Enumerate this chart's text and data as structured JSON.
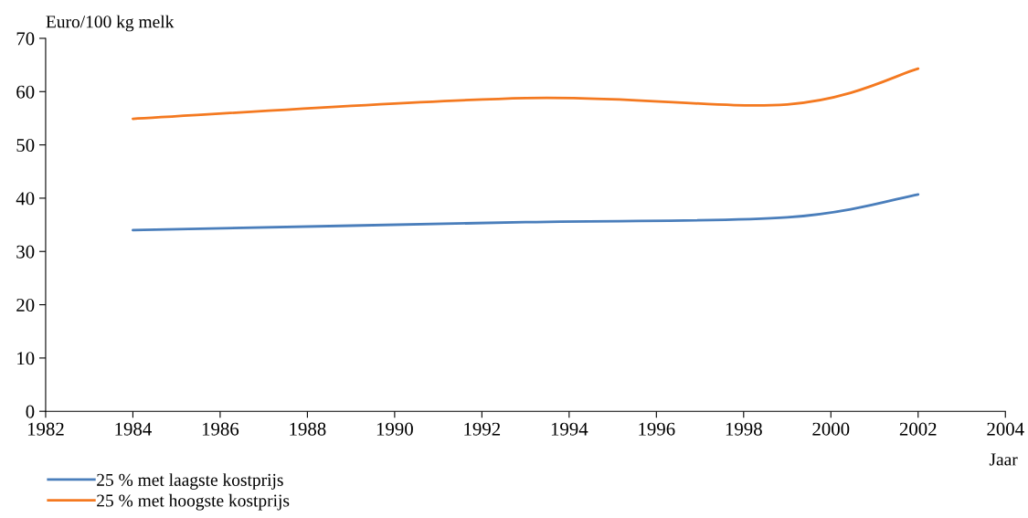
{
  "chart_data": {
    "type": "line",
    "ylabel": "Euro/100 kg melk",
    "xlabel": "Jaar",
    "x": [
      1984,
      1993,
      1999,
      2002
    ],
    "series": [
      {
        "name": "25 % met laagste kostprijs",
        "color": "#4a7ebb",
        "values": [
          34.0,
          35.5,
          36.4,
          40.7
        ]
      },
      {
        "name": "25 % met hoogste kostprijs",
        "color": "#f47920",
        "values": [
          54.9,
          58.8,
          57.6,
          64.3
        ]
      }
    ],
    "xlim": [
      1982,
      2004
    ],
    "xticks": [
      1982,
      1984,
      1986,
      1988,
      1990,
      1992,
      1994,
      1996,
      1998,
      2000,
      2002,
      2004
    ],
    "ylim": [
      0,
      70
    ],
    "yticks": [
      0,
      10,
      20,
      30,
      40,
      50,
      60,
      70
    ],
    "grid": false,
    "legend": "bottom left",
    "marker": "none",
    "line_style": "solid"
  }
}
